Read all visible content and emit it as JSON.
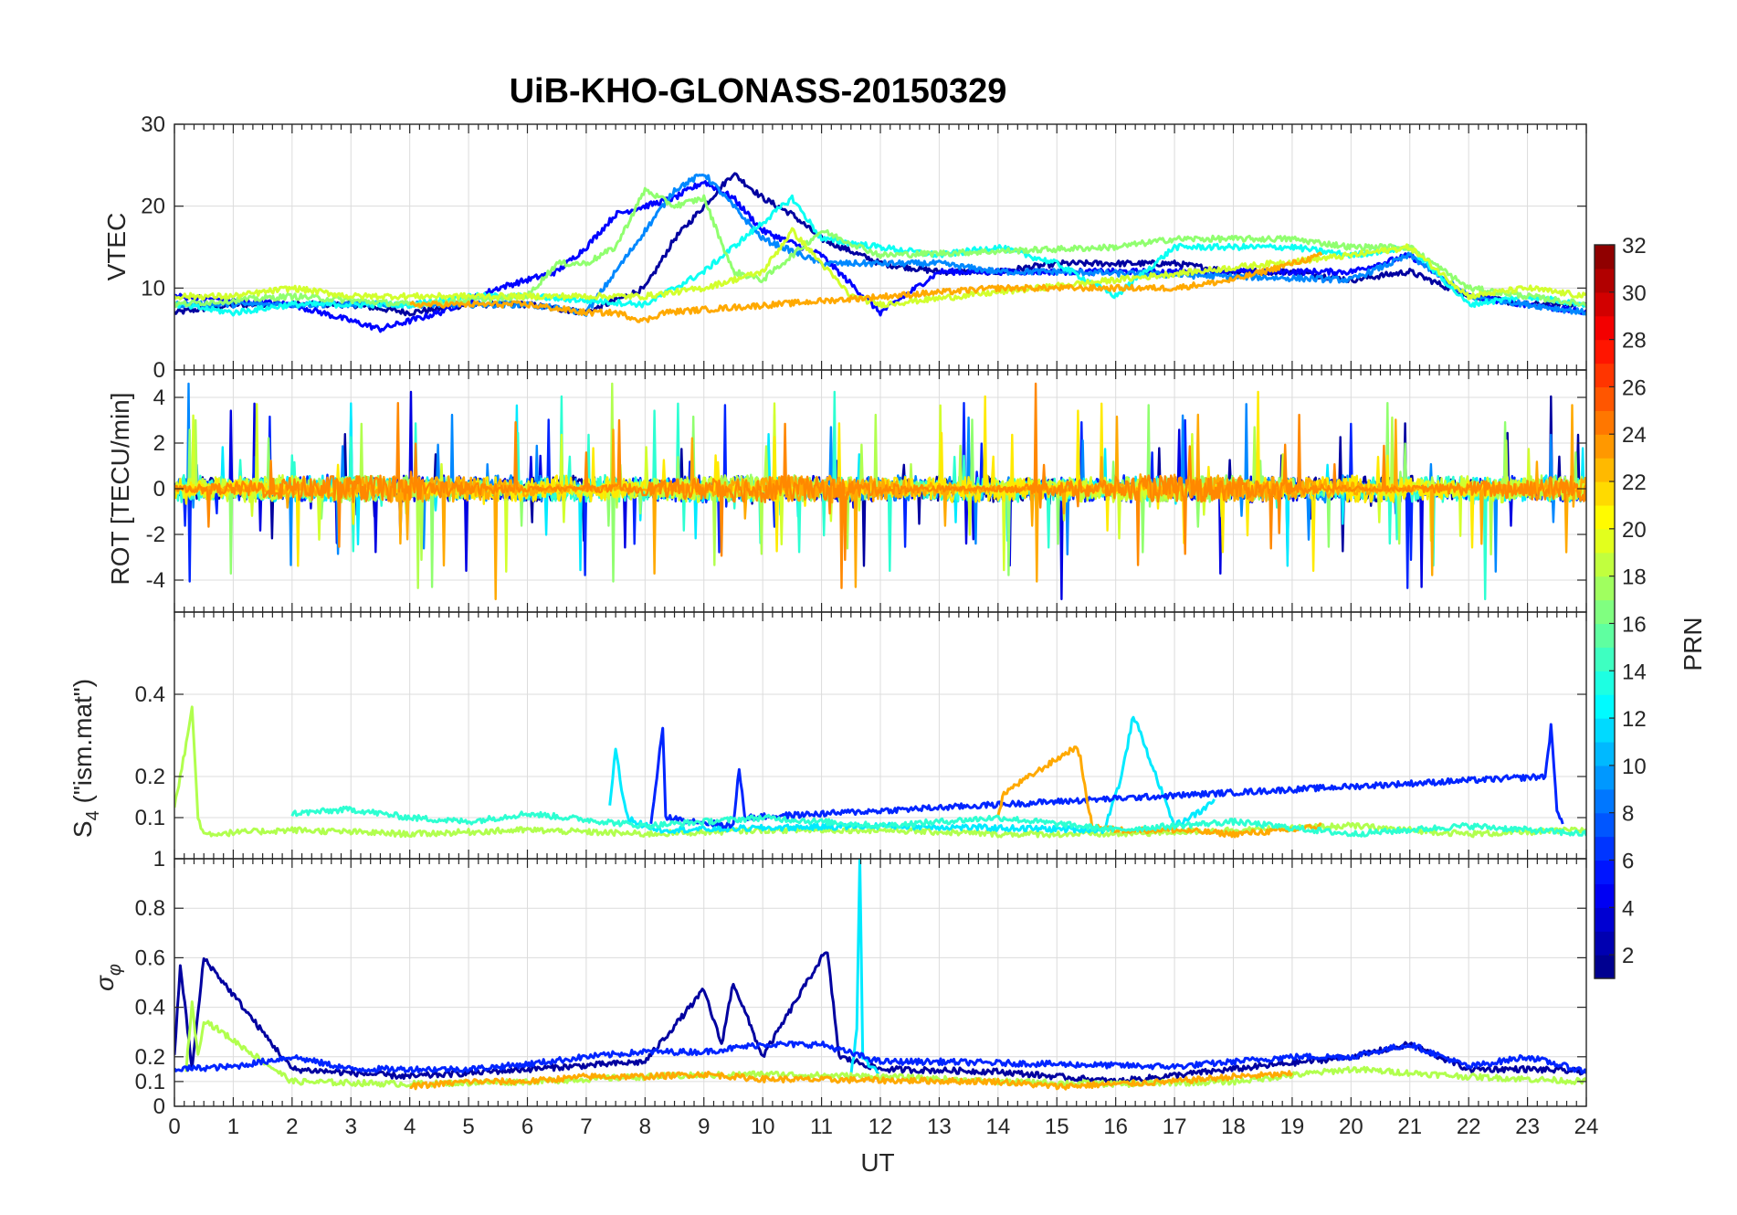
{
  "chart_data": [
    {
      "type": "line",
      "title": "UiB-KHO-GLONASS-20150329",
      "panel": "VTEC",
      "ylabel": "VTEC",
      "xlim": [
        0,
        24
      ],
      "ylim": [
        0,
        30
      ],
      "yticks": [
        0,
        10,
        20,
        30
      ],
      "grid": true,
      "series": [
        {
          "prn": 2,
          "x": [
            0,
            1,
            2,
            3,
            4,
            5,
            6,
            7,
            8,
            8.5,
            9,
            9.5,
            10,
            10.5,
            11,
            12,
            13,
            14,
            15,
            16,
            17,
            18,
            19,
            20,
            21,
            22,
            23,
            24
          ],
          "values": [
            7,
            8,
            8,
            8,
            7,
            8,
            8,
            7,
            10,
            16,
            20,
            24,
            21,
            19,
            16,
            13,
            12,
            12,
            13,
            13,
            13,
            12,
            12,
            11,
            12,
            9,
            8,
            8
          ]
        },
        {
          "prn": 5,
          "x": [
            0,
            2,
            3.5,
            4.5,
            5.5,
            6.5,
            7,
            7.5,
            8,
            8.5,
            9,
            9.5,
            10,
            11,
            12,
            13,
            20,
            21,
            22,
            23,
            24
          ],
          "values": [
            9,
            8,
            5,
            7,
            10,
            12,
            15,
            19,
            20,
            21,
            23,
            21,
            17,
            14,
            7,
            12,
            12,
            14,
            9,
            8,
            7
          ]
        },
        {
          "prn": 9,
          "x": [
            0,
            2,
            4,
            6,
            7,
            8,
            8.5,
            9,
            9.5,
            10,
            11,
            12,
            13,
            14,
            15,
            20,
            21,
            22,
            23,
            24
          ],
          "values": [
            8,
            8,
            8,
            8,
            7,
            17,
            22,
            24,
            20,
            16,
            13,
            13,
            13,
            12,
            12,
            11,
            14,
            9,
            8,
            7
          ]
        },
        {
          "prn": 13,
          "x": [
            0,
            1,
            2,
            3,
            4,
            5,
            6,
            8,
            9,
            10,
            10.5,
            11,
            12,
            13,
            14,
            15,
            16,
            17,
            18,
            19,
            20,
            21,
            22,
            23,
            24
          ],
          "values": [
            8,
            7,
            8,
            8,
            8,
            9,
            9,
            8,
            12,
            18,
            21,
            16,
            15,
            14,
            15,
            13,
            9,
            15,
            15,
            15,
            14,
            15,
            8,
            9,
            8
          ]
        },
        {
          "prn": 17,
          "x": [
            0,
            2,
            4,
            6,
            6.5,
            7,
            7.5,
            8,
            8.5,
            9,
            9.5,
            10,
            11,
            12,
            16,
            17,
            18,
            19,
            20,
            21,
            22,
            23,
            24
          ],
          "values": [
            8,
            9,
            8,
            9,
            13,
            13,
            15,
            22,
            20,
            21,
            12,
            11,
            17,
            14,
            15,
            16,
            16,
            16,
            15,
            15,
            10,
            9,
            8
          ]
        },
        {
          "prn": 19,
          "x": [
            0,
            1,
            2,
            3,
            4,
            5,
            6,
            8,
            9,
            10,
            10.5,
            11,
            11.5,
            12,
            20,
            21,
            22,
            23,
            24
          ],
          "values": [
            9,
            9,
            10,
            9,
            9,
            9,
            9,
            9,
            10,
            12,
            17,
            13,
            9,
            8,
            14,
            15,
            9,
            10,
            9
          ]
        },
        {
          "prn": 23,
          "x": [
            4,
            5,
            6,
            7,
            7.5,
            8,
            8.3,
            14,
            15,
            16,
            17,
            18,
            19,
            19.5
          ],
          "values": [
            8,
            8,
            8,
            7,
            7,
            6,
            7,
            10,
            10,
            10,
            10,
            11,
            13,
            14
          ]
        }
      ]
    },
    {
      "type": "line",
      "panel": "ROT",
      "ylabel": "ROT [TECU/min]",
      "xlim": [
        0,
        24
      ],
      "ylim": [
        -5.4,
        5.2
      ],
      "yticks": [
        -4,
        -2,
        0,
        2,
        4
      ],
      "grid": true
    },
    {
      "type": "line",
      "panel": "S4",
      "ylabel": "S4 (\"ism.mat\")",
      "xlim": [
        0,
        24
      ],
      "ylim": [
        0,
        0.6
      ],
      "yticks": [
        0.1,
        0.2,
        0.4
      ],
      "grid": true,
      "series": [
        {
          "prn": 18,
          "x": [
            0,
            0.1,
            0.2,
            0.3,
            0.4,
            0.5,
            2,
            4,
            6,
            8,
            10,
            12,
            14,
            16,
            18,
            20,
            22,
            24
          ],
          "values": [
            0.13,
            0.2,
            0.28,
            0.37,
            0.1,
            0.06,
            0.07,
            0.06,
            0.07,
            0.06,
            0.07,
            0.07,
            0.06,
            0.06,
            0.07,
            0.08,
            0.06,
            0.07
          ]
        },
        {
          "prn": 12,
          "x": [
            7.4,
            7.5,
            7.6,
            7.7,
            8,
            8.3,
            12,
            15.8,
            16.1,
            16.3,
            17,
            17.5,
            17.7
          ],
          "values": [
            0.13,
            0.27,
            0.17,
            0.1,
            0.08,
            0.07,
            0.08,
            0.07,
            0.2,
            0.35,
            0.08,
            0.12,
            0.15
          ]
        },
        {
          "prn": 6,
          "x": [
            8.1,
            8.2,
            8.3,
            8.35,
            9.5,
            9.6,
            9.7,
            23.3,
            23.4,
            23.5,
            23.6
          ],
          "values": [
            0.08,
            0.2,
            0.32,
            0.1,
            0.08,
            0.22,
            0.1,
            0.2,
            0.32,
            0.12,
            0.09
          ]
        },
        {
          "prn": 23,
          "x": [
            14,
            14.1,
            15.3,
            15.4,
            15.5,
            15.6,
            16,
            17,
            18,
            19,
            19.5
          ],
          "values": [
            0.1,
            0.16,
            0.27,
            0.25,
            0.15,
            0.08,
            0.07,
            0.07,
            0.06,
            0.07,
            0.08
          ]
        },
        {
          "prn": 14,
          "x": [
            2,
            3,
            4,
            5,
            6,
            8,
            10,
            12,
            14,
            16,
            18,
            20,
            22,
            24
          ],
          "values": [
            0.11,
            0.12,
            0.1,
            0.09,
            0.11,
            0.08,
            0.1,
            0.08,
            0.1,
            0.07,
            0.09,
            0.06,
            0.08,
            0.06
          ]
        }
      ]
    },
    {
      "type": "line",
      "panel": "sigma_phi",
      "ylabel": "σφ",
      "xlabel": "UT",
      "xlim": [
        0,
        24
      ],
      "xticks": [
        0,
        1,
        2,
        3,
        4,
        5,
        6,
        7,
        8,
        9,
        10,
        11,
        12,
        13,
        14,
        15,
        16,
        17,
        18,
        19,
        20,
        21,
        22,
        23,
        24
      ],
      "ylim": [
        0,
        1
      ],
      "yticks": [
        0,
        0.1,
        0.2,
        0.4,
        0.6,
        0.8,
        1
      ],
      "grid": true,
      "series": [
        {
          "prn": 2,
          "x": [
            0,
            0.1,
            0.3,
            0.5,
            2,
            4,
            6,
            8,
            9,
            9.3,
            9.5,
            10,
            11,
            11.1,
            11.3,
            12,
            14,
            16,
            18,
            20,
            21,
            22,
            23,
            24
          ],
          "values": [
            0.2,
            0.57,
            0.15,
            0.6,
            0.15,
            0.12,
            0.15,
            0.18,
            0.47,
            0.25,
            0.5,
            0.2,
            0.6,
            0.62,
            0.2,
            0.15,
            0.14,
            0.1,
            0.15,
            0.2,
            0.25,
            0.15,
            0.15,
            0.14
          ]
        },
        {
          "prn": 12,
          "x": [
            11.5,
            11.6,
            11.65,
            11.7,
            12
          ],
          "values": [
            0.12,
            0.3,
            1.0,
            0.2,
            0.12
          ]
        },
        {
          "prn": 18,
          "x": [
            0.2,
            0.3,
            0.4,
            0.5,
            2,
            4,
            6,
            8,
            10,
            12,
            14,
            16,
            18,
            20,
            22,
            24
          ],
          "values": [
            0.15,
            0.42,
            0.2,
            0.35,
            0.1,
            0.09,
            0.1,
            0.12,
            0.13,
            0.12,
            0.1,
            0.09,
            0.1,
            0.15,
            0.12,
            0.1
          ]
        },
        {
          "prn": 23,
          "x": [
            4,
            5,
            6,
            7,
            8,
            9,
            10,
            14,
            15,
            16,
            17,
            18,
            19
          ],
          "values": [
            0.08,
            0.1,
            0.1,
            0.12,
            0.12,
            0.13,
            0.11,
            0.1,
            0.08,
            0.09,
            0.1,
            0.12,
            0.13
          ]
        },
        {
          "prn": 6,
          "x": [
            0,
            1,
            2,
            3,
            5,
            6,
            7,
            8,
            9,
            10,
            11,
            12,
            13,
            17,
            18,
            19,
            20,
            21,
            22,
            23,
            24
          ],
          "values": [
            0.15,
            0.16,
            0.2,
            0.15,
            0.15,
            0.17,
            0.2,
            0.22,
            0.22,
            0.25,
            0.25,
            0.18,
            0.18,
            0.16,
            0.18,
            0.2,
            0.2,
            0.25,
            0.16,
            0.2,
            0.14
          ]
        }
      ]
    }
  ],
  "colorbar": {
    "label": "PRN",
    "min": 1,
    "max": 32,
    "ticks": [
      "2",
      "4",
      "6",
      "8",
      "10",
      "12",
      "14",
      "16",
      "18",
      "20",
      "22",
      "24",
      "26",
      "28",
      "30",
      "32"
    ],
    "colormap": "jet"
  },
  "labels": {
    "title": "UiB-KHO-GLONASS-20150329",
    "vtec": "VTEC",
    "rot": "ROT [TECU/min]",
    "s4_main": "S",
    "s4_sub": "4",
    "s4_rest": " (\"ism.mat\")",
    "sigma_main": "σ",
    "sigma_sub": "φ",
    "xlabel": "UT",
    "cbar": "PRN"
  }
}
